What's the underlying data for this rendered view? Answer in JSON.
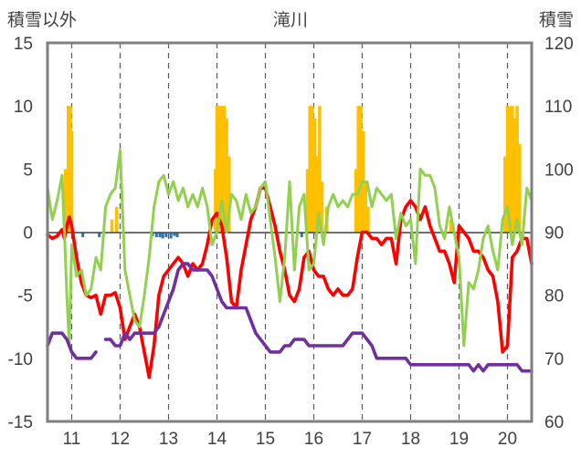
{
  "chart_data": {
    "type": "line",
    "title": "滝川",
    "left_axis_label": "積雪以外",
    "right_axis_label": "積雪",
    "x_ticks": [
      11,
      12,
      13,
      14,
      15,
      16,
      17,
      18,
      19,
      20
    ],
    "xlim": [
      10.5,
      20.5
    ],
    "left_ylim": [
      -15,
      15
    ],
    "left_yticks": [
      -15,
      -10,
      -5,
      0,
      5,
      10,
      15
    ],
    "right_ylim": [
      60,
      120
    ],
    "right_yticks": [
      60,
      70,
      80,
      90,
      100,
      110,
      120
    ],
    "grid": "vertical dashed at integer days",
    "colors": {
      "temperature": "#ff0000",
      "humidity": "#92d050",
      "snow_depth": "#7030a0",
      "snowfall": "#ffc000",
      "precip": "#2e75b6"
    },
    "series": [
      {
        "key": "temperature",
        "axis": "left",
        "x": [
          10.5,
          10.6,
          10.7,
          10.8,
          10.85,
          10.9,
          10.95,
          11.0,
          11.1,
          11.2,
          11.3,
          11.4,
          11.5,
          11.6,
          11.7,
          11.8,
          11.9,
          12.0,
          12.1,
          12.2,
          12.3,
          12.4,
          12.5,
          12.6,
          12.7,
          12.8,
          12.9,
          13.0,
          13.1,
          13.2,
          13.3,
          13.4,
          13.5,
          13.6,
          13.7,
          13.8,
          13.9,
          14.0,
          14.1,
          14.2,
          14.3,
          14.4,
          14.5,
          14.6,
          14.7,
          14.8,
          14.9,
          15.0,
          15.1,
          15.2,
          15.3,
          15.4,
          15.5,
          15.6,
          15.7,
          15.8,
          15.9,
          16.0,
          16.1,
          16.2,
          16.3,
          16.4,
          16.5,
          16.6,
          16.7,
          16.8,
          16.9,
          17.0,
          17.1,
          17.2,
          17.3,
          17.4,
          17.5,
          17.6,
          17.7,
          17.8,
          17.9,
          18.0,
          18.1,
          18.2,
          18.3,
          18.4,
          18.5,
          18.6,
          18.7,
          18.8,
          18.9,
          19.0,
          19.1,
          19.2,
          19.3,
          19.4,
          19.5,
          19.6,
          19.7,
          19.8,
          19.9,
          20.0,
          20.1,
          20.2,
          20.3,
          20.4,
          20.5
        ],
        "y": [
          -0.2,
          -0.5,
          -0.3,
          0.2,
          -0.5,
          0.5,
          1.2,
          0.5,
          -2.0,
          -4.0,
          -5.0,
          -5.2,
          -5.0,
          -6.5,
          -5.0,
          -5.0,
          -4.8,
          -6.0,
          -8.5,
          -7.5,
          -6.5,
          -7.5,
          -9.5,
          -11.5,
          -9.0,
          -5.0,
          -3.5,
          -3.0,
          -2.5,
          -2.0,
          -2.5,
          -3.5,
          -2.5,
          -3.0,
          -2.5,
          -1.0,
          1.0,
          1.5,
          0.5,
          -2.0,
          -5.5,
          -6.0,
          -3.0,
          -1.0,
          1.0,
          2.0,
          3.5,
          3.5,
          2.0,
          0.5,
          -1.5,
          -3.0,
          -5.0,
          -5.5,
          -4.5,
          -2.0,
          -1.5,
          -3.0,
          -3.5,
          -3.5,
          -4.5,
          -5.0,
          -4.5,
          -5.0,
          -5.0,
          -4.5,
          -2.0,
          0.0,
          0.0,
          -0.5,
          -0.5,
          -1.0,
          -0.5,
          -0.5,
          -2.5,
          1.0,
          2.0,
          2.5,
          2.0,
          1.0,
          2.0,
          0.5,
          -0.5,
          -1.5,
          -1.5,
          -2.5,
          -4.0,
          0.5,
          0.0,
          -0.5,
          -1.5,
          -1.5,
          -2.0,
          -3.0,
          -3.5,
          -5.5,
          -9.5,
          -9.0,
          -2.0,
          -1.5,
          -0.5,
          -0.5,
          -2.5
        ]
      },
      {
        "key": "humidity",
        "axis": "left",
        "x": [
          10.5,
          10.6,
          10.7,
          10.8,
          10.85,
          10.9,
          10.95,
          11.0,
          11.1,
          11.2,
          11.3,
          11.4,
          11.5,
          11.6,
          11.7,
          11.8,
          11.9,
          12.0,
          12.1,
          12.2,
          12.3,
          12.4,
          12.5,
          12.6,
          12.7,
          12.8,
          12.9,
          13.0,
          13.1,
          13.2,
          13.3,
          13.4,
          13.5,
          13.6,
          13.7,
          13.8,
          13.9,
          14.0,
          14.1,
          14.2,
          14.3,
          14.4,
          14.5,
          14.6,
          14.7,
          14.8,
          14.9,
          15.0,
          15.1,
          15.2,
          15.3,
          15.4,
          15.5,
          15.6,
          15.7,
          15.8,
          15.9,
          16.0,
          16.1,
          16.2,
          16.3,
          16.4,
          16.5,
          16.6,
          16.7,
          16.8,
          16.9,
          17.0,
          17.1,
          17.2,
          17.3,
          17.4,
          17.5,
          17.6,
          17.7,
          17.8,
          17.9,
          18.0,
          18.1,
          18.2,
          18.3,
          18.4,
          18.5,
          18.6,
          18.7,
          18.8,
          18.9,
          19.0,
          19.1,
          19.2,
          19.3,
          19.4,
          19.5,
          19.6,
          19.7,
          19.8,
          19.9,
          20.0,
          20.1,
          20.2,
          20.3,
          20.4,
          20.5
        ],
        "y": [
          3.5,
          1.0,
          2.5,
          4.5,
          0.0,
          -5.0,
          -9.0,
          -1.0,
          -3.5,
          -3.0,
          -5.0,
          -4.5,
          -2.0,
          -3.0,
          2.0,
          3.0,
          3.5,
          6.5,
          -3.0,
          -5.0,
          -7.0,
          -7.5,
          -5.0,
          -2.0,
          2.0,
          4.0,
          4.5,
          3.0,
          4.0,
          2.5,
          3.5,
          2.0,
          3.0,
          2.0,
          3.5,
          2.0,
          -1.0,
          0.0,
          2.5,
          0.0,
          3.0,
          2.5,
          1.0,
          3.0,
          1.5,
          2.0,
          3.5,
          4.0,
          1.0,
          -2.0,
          -5.5,
          -2.0,
          4.0,
          -3.0,
          2.0,
          3.0,
          -3.0,
          -2.5,
          1.5,
          -1.0,
          2.0,
          3.0,
          2.0,
          2.5,
          2.0,
          3.0,
          3.0,
          4.0,
          4.0,
          2.0,
          3.5,
          3.0,
          2.5,
          3.0,
          -0.5,
          1.5,
          0.5,
          1.0,
          -2.5,
          5.0,
          4.5,
          4.5,
          3.5,
          0.5,
          -0.5,
          2.0,
          0.0,
          -2.0,
          -9.0,
          -4.0,
          -4.5,
          -3.0,
          -0.5,
          0.5,
          -1.5,
          -3.0,
          1.0,
          2.0,
          -1.0,
          1.0,
          -1.0,
          3.5,
          2.5
        ]
      },
      {
        "key": "snow_depth",
        "axis": "right",
        "x": [
          10.5,
          10.6,
          10.7,
          10.8,
          10.9,
          11.0,
          11.1,
          11.2,
          11.3,
          11.4,
          11.5,
          11.6,
          11.7,
          11.8,
          11.9,
          12.0,
          12.1,
          12.2,
          12.3,
          12.4,
          12.5,
          12.6,
          12.7,
          12.8,
          12.9,
          13.0,
          13.1,
          13.2,
          13.3,
          13.4,
          13.5,
          13.6,
          13.7,
          13.8,
          13.9,
          14.0,
          14.1,
          14.2,
          14.3,
          14.4,
          14.5,
          14.6,
          14.7,
          14.8,
          14.9,
          15.0,
          15.1,
          15.2,
          15.3,
          15.4,
          15.5,
          15.6,
          15.7,
          15.8,
          15.9,
          16.0,
          16.1,
          16.2,
          16.3,
          16.4,
          16.5,
          16.6,
          16.7,
          16.8,
          16.9,
          17.0,
          17.1,
          17.2,
          17.3,
          17.4,
          17.5,
          17.6,
          17.7,
          17.8,
          17.9,
          18.0,
          18.1,
          18.2,
          18.3,
          18.4,
          18.5,
          18.6,
          18.7,
          18.8,
          18.9,
          19.0,
          19.1,
          19.2,
          19.3,
          19.4,
          19.5,
          19.6,
          19.7,
          19.8,
          19.9,
          20.0,
          20.1,
          20.2,
          20.3,
          20.4,
          20.5
        ],
        "y": [
          72,
          74,
          74,
          74,
          73,
          71,
          70,
          70,
          70,
          70,
          71,
          null,
          73,
          73,
          72,
          72,
          74,
          73,
          74,
          74,
          74,
          74,
          74,
          75,
          77,
          79,
          81,
          84,
          85,
          85,
          84,
          84,
          84,
          84,
          83,
          81,
          79,
          78,
          78,
          78,
          78,
          78,
          76,
          74,
          73,
          72,
          71,
          71,
          71,
          72,
          72,
          73,
          73,
          73,
          72,
          72,
          72,
          72,
          72,
          72,
          72,
          72,
          73,
          74,
          74,
          74,
          73,
          72,
          70,
          70,
          70,
          70,
          70,
          70,
          70,
          69,
          69,
          69,
          69,
          69,
          69,
          69,
          69,
          69,
          69,
          69,
          69,
          69,
          68,
          69,
          68,
          69,
          69,
          69,
          69,
          69,
          69,
          69,
          68,
          68,
          68
        ]
      }
    ],
    "bars": [
      {
        "key": "snowfall",
        "axis": "left",
        "x": [
          10.87,
          10.93,
          10.97,
          11.0,
          11.83,
          11.93,
          13.97,
          14.0,
          14.05,
          14.1,
          14.15,
          14.2,
          14.25,
          15.87,
          15.92,
          15.97,
          16.02,
          16.07,
          16.12,
          16.17,
          16.27,
          16.87,
          16.92,
          16.97,
          17.02,
          17.07,
          17.12,
          18.83,
          19.95,
          20.0,
          20.05,
          20.1,
          20.15,
          20.2,
          20.25
        ],
        "y": [
          5.0,
          10.0,
          10.0,
          8.0,
          1.0,
          2.0,
          5.0,
          10.0,
          10.0,
          10.0,
          10.0,
          9.0,
          6.0,
          5.0,
          10.0,
          10.0,
          9.0,
          6.0,
          10.0,
          4.0,
          2.0,
          5.0,
          10.0,
          10.0,
          8.0,
          4.0,
          2.0,
          1.0,
          6.0,
          10.0,
          10.0,
          10.0,
          9.0,
          10.0,
          7.0
        ]
      },
      {
        "key": "precip",
        "axis": "left",
        "x": [
          11.23,
          11.57,
          12.67,
          12.75,
          12.82,
          12.88,
          12.95,
          13.05,
          13.12,
          13.18,
          15.75,
          16.05
        ],
        "y": [
          -0.4,
          -0.4,
          -0.3,
          -0.4,
          -0.4,
          -0.5,
          -0.4,
          -0.5,
          -0.3,
          -0.4,
          -0.4,
          -0.3
        ]
      }
    ]
  }
}
